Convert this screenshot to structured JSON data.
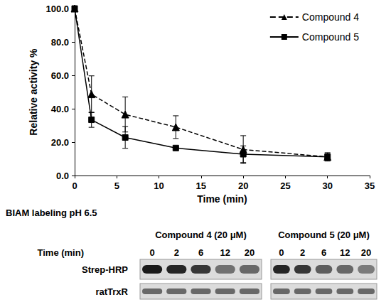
{
  "chart_data": {
    "type": "line",
    "x_label": "Time (min)",
    "y_label": "Relative activity %",
    "xlim": [
      0,
      35
    ],
    "xticks": [
      0,
      5,
      10,
      15,
      20,
      25,
      30,
      35
    ],
    "ylim": [
      0,
      100
    ],
    "yticks": [
      {
        "value": 0,
        "label": "0.0"
      },
      {
        "value": 20,
        "label": "20.0"
      },
      {
        "value": 40,
        "label": "40.0"
      },
      {
        "value": 60,
        "label": "60.0"
      },
      {
        "value": 80,
        "label": "80.0"
      },
      {
        "value": 100,
        "label": "100.0"
      }
    ],
    "grid": false,
    "legend": "top-right",
    "x": [
      0,
      2,
      6,
      12,
      20,
      30
    ],
    "series": [
      {
        "name": "Compound 4",
        "color": "#000000",
        "marker": "triangle",
        "line_style": "dashed",
        "values": [
          100,
          48.7,
          36.6,
          29.0,
          15.6,
          11.2
        ],
        "errors": [
          0,
          11.0,
          10.5,
          6.8,
          8.3,
          2.5
        ]
      },
      {
        "name": "Compound 5",
        "color": "#000000",
        "marker": "square",
        "line_style": "solid",
        "values": [
          100,
          33.4,
          22.8,
          16.5,
          12.8,
          11.2
        ],
        "errors": [
          0,
          4.5,
          6.5,
          0.5,
          5.0,
          2.0
        ]
      }
    ]
  },
  "blot": {
    "title": "BIAM  labeling pH 6.5",
    "time_label": "Time (min)",
    "rows": [
      "Strep-HRP",
      "ratTrxR"
    ],
    "panels": [
      {
        "label": "Compound 4 (20 μM)",
        "times": [
          0,
          2,
          6,
          12,
          20
        ],
        "band_intensity": [
          [
            1.0,
            0.95,
            0.85,
            0.55,
            0.6
          ],
          [
            0.6,
            0.6,
            0.6,
            0.6,
            0.6
          ]
        ]
      },
      {
        "label": "Compound 5 (20 μM)",
        "times": [
          0,
          2,
          6,
          12,
          20
        ],
        "band_intensity": [
          [
            0.95,
            0.85,
            0.65,
            0.6,
            0.5
          ],
          [
            0.6,
            0.6,
            0.6,
            0.6,
            0.6
          ]
        ]
      }
    ]
  }
}
